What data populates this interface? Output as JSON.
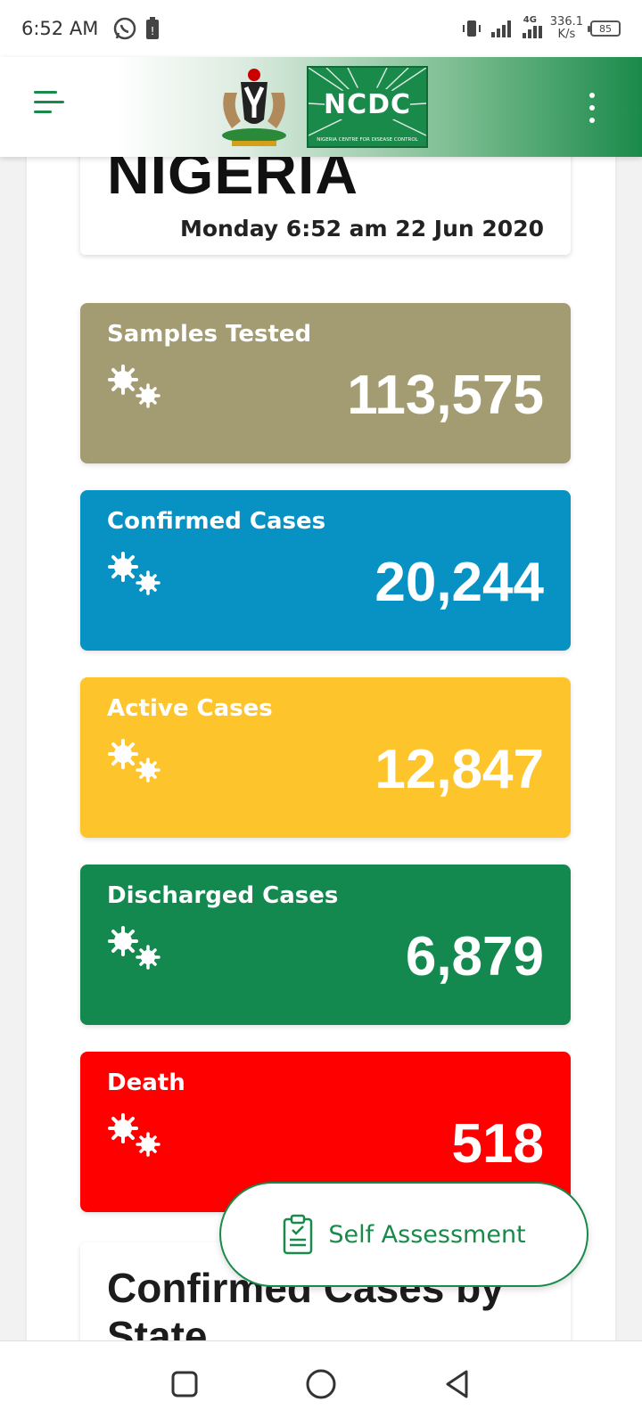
{
  "status_bar": {
    "time": "6:52 AM",
    "network": "4G",
    "speed_value": "336.1",
    "speed_unit": "K/s",
    "battery": "85"
  },
  "header": {
    "logo_text": "NCDC",
    "logo_subtitle": "NIGERIA CENTRE FOR DISEASE CONTROL",
    "brand_color": "#1a8a4a"
  },
  "summary": {
    "country": "NIGERIA",
    "date": "Monday 6:52 am 22 Jun 2020"
  },
  "stats": [
    {
      "label": "Samples Tested",
      "value": "113,575",
      "color": "#a39b72"
    },
    {
      "label": "Confirmed Cases",
      "value": "20,244",
      "color": "#0892c4"
    },
    {
      "label": "Active Cases",
      "value": "12,847",
      "color": "#fec42b"
    },
    {
      "label": "Discharged Cases",
      "value": "6,879",
      "color": "#13884f"
    },
    {
      "label": "Death",
      "value": "518",
      "color": "#fe0000"
    }
  ],
  "state_section": {
    "title": "Confirmed Cases by State"
  },
  "fab": {
    "label": "Self Assessment",
    "icon": "clipboard-icon"
  }
}
